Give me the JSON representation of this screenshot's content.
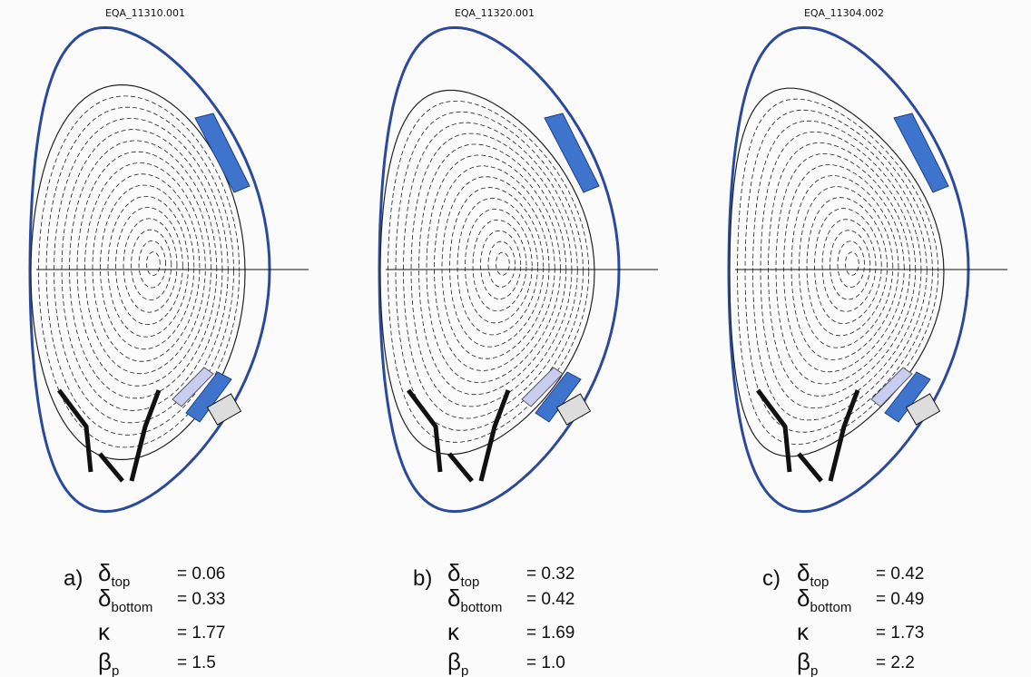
{
  "panels": [
    {
      "title": "EQA_11310.001",
      "label": "a)",
      "params": [
        {
          "symbol": "δ",
          "subscript": "top",
          "value": "= 0.06"
        },
        {
          "symbol": "δ",
          "subscript": "bottom",
          "value": "= 0.33"
        },
        {
          "symbol": "κ",
          "value": "= 1.77"
        },
        {
          "symbol": "β",
          "subscript": "p",
          "value": "= 1.5"
        }
      ]
    },
    {
      "title": "EQA_11320.001",
      "label": "b)",
      "params": [
        {
          "symbol": "δ",
          "subscript": "top",
          "value": "= 0.32"
        },
        {
          "symbol": "δ",
          "subscript": "bottom",
          "value": "= 0.42"
        },
        {
          "symbol": "κ",
          "value": "= 1.69"
        },
        {
          "symbol": "β",
          "subscript": "p",
          "value": "= 1.0"
        }
      ]
    },
    {
      "title": "EQA_11304.002",
      "label": "c)",
      "params": [
        {
          "symbol": "δ",
          "subscript": "top",
          "value": "= 0.42"
        },
        {
          "symbol": "δ",
          "subscript": "bottom",
          "value": "= 0.49"
        },
        {
          "symbol": "κ",
          "value": "= 1.73"
        },
        {
          "symbol": "β",
          "subscript": "p",
          "value": "= 2.2"
        }
      ]
    }
  ]
}
